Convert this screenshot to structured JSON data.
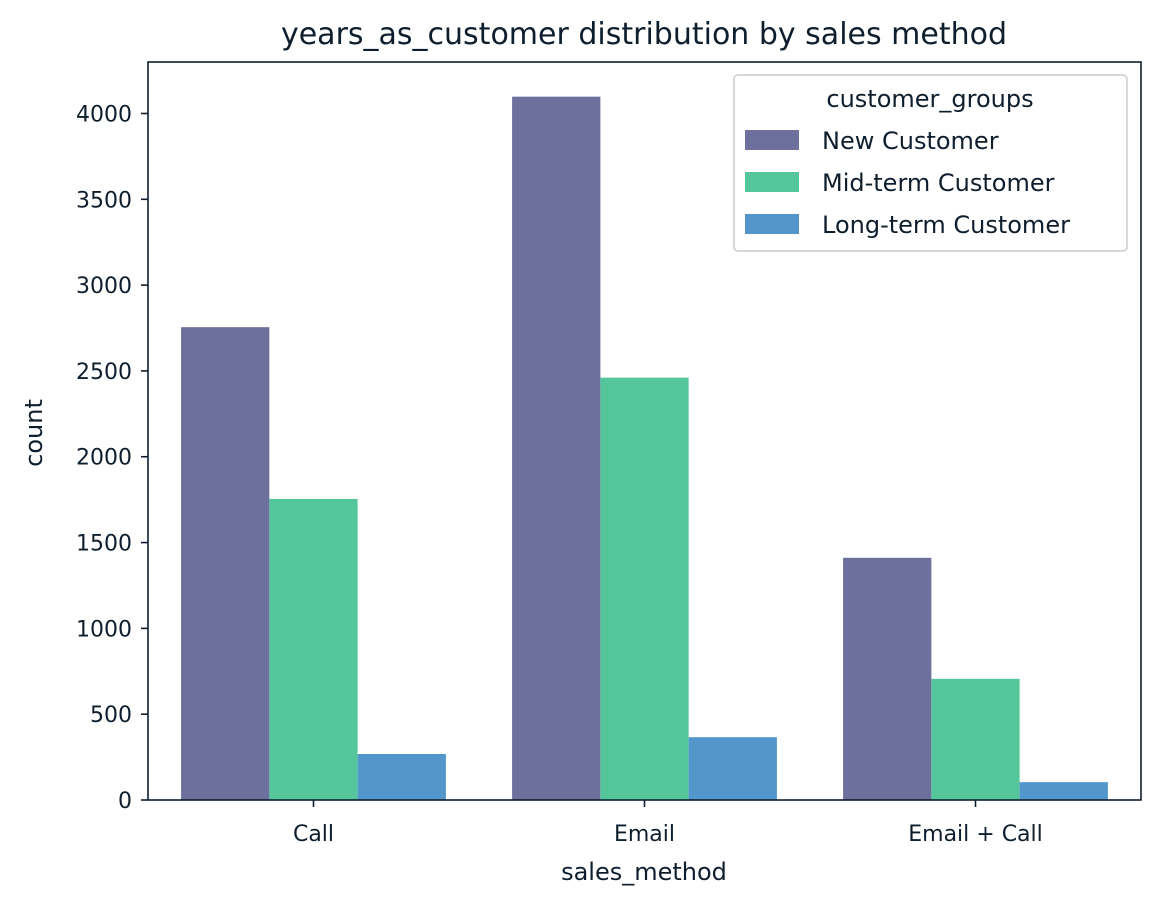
{
  "chart_data": {
    "type": "bar",
    "title": "years_as_customer distribution by sales method",
    "xlabel": "sales_method",
    "ylabel": "count",
    "categories": [
      "Call",
      "Email",
      "Email + Call"
    ],
    "series": [
      {
        "name": "New Customer",
        "values": [
          2755,
          4098,
          1411
        ],
        "color": "#6d6f9c"
      },
      {
        "name": "Mid-term Customer",
        "values": [
          1754,
          2461,
          706
        ],
        "color": "#55c69c"
      },
      {
        "name": "Long-term Customer",
        "values": [
          268,
          366,
          104
        ],
        "color": "#5296cc"
      }
    ],
    "ylim": [
      0,
      4300
    ],
    "yticks": [
      0,
      500,
      1000,
      1500,
      2000,
      2500,
      3000,
      3500,
      4000
    ],
    "grid": false,
    "legend": {
      "title": "customer_groups",
      "position": "top-right"
    }
  }
}
